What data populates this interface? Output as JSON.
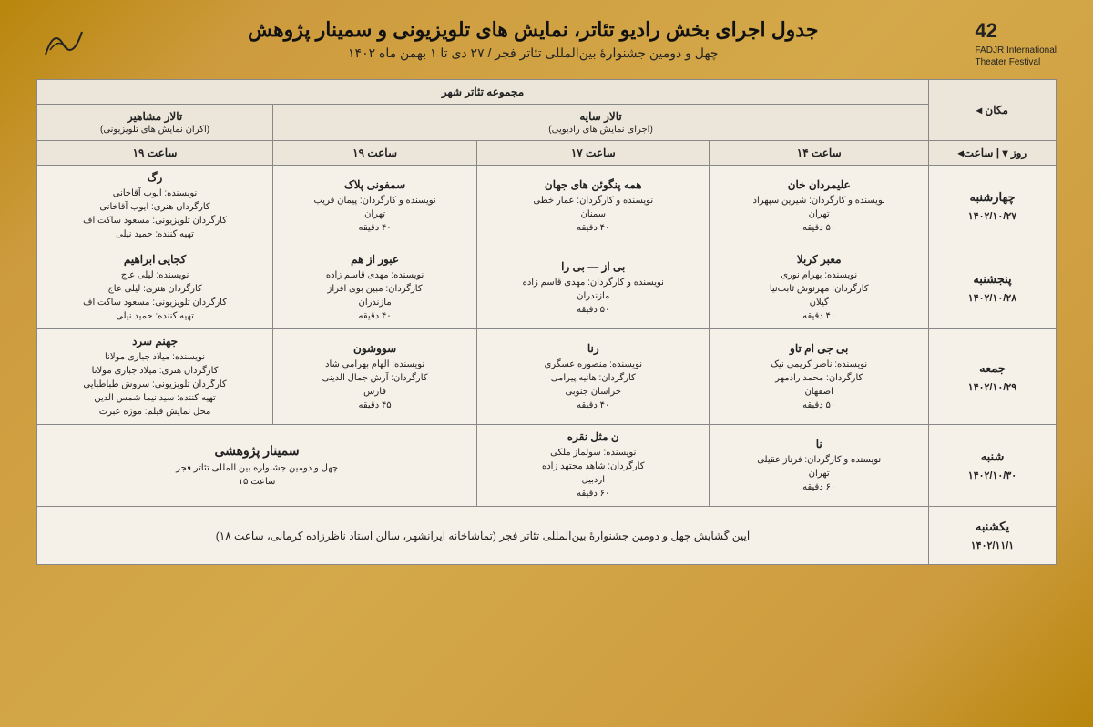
{
  "header": {
    "logo_right_num": "42",
    "logo_right_text1": "FADJR International",
    "logo_right_text2": "Theater Festival",
    "title_main": "جدول اجرای بخش رادیو تئاتر، نمایش های تلویزیونی و سمینار پژوهش",
    "title_sub": "چهل و دومین جشنوارهٔ بین‌المللی تئاتر فجر   /   ۲۷ دی تا ۱ بهمن ماه ۱۴۰۲"
  },
  "columns": {
    "venue_group": "مجموعه تئاتر شهر",
    "place_label": "مکان ◂",
    "day_time_label": "روز  ▾   |   ساعت◂",
    "hall_sayeh": "تالار سایه",
    "hall_sayeh_sub": "(اجرای نمایش های رادیویی)",
    "hall_mashahir": "تالار مشاهیر",
    "hall_mashahir_sub": "(اکران نمایش های تلویزیونی)",
    "time_14": "ساعت ۱۴",
    "time_17": "ساعت ۱۷",
    "time_19a": "ساعت ۱۹",
    "time_19b": "ساعت ۱۹"
  },
  "rows": [
    {
      "day_name": "چهارشنبه",
      "day_date": "۱۴۰۲/۱۰/۲۷",
      "c14": {
        "title": "علیمردان خان",
        "lines": [
          "نویسنده و کارگردان: شیرین سپهراد",
          "تهران",
          "۵۰ دقیقه"
        ]
      },
      "c17": {
        "title": "همه پنگوئن های جهان",
        "lines": [
          "نویسنده و کارگردان: عمار خطی",
          "سمنان",
          "۴۰ دقیقه"
        ]
      },
      "c19a": {
        "title": "سمفونی پلاک",
        "lines": [
          "نویسنده و کارگردان: پیمان قریب",
          "تهران",
          "۴۰ دقیقه"
        ]
      },
      "c19b": {
        "title": "رگ",
        "lines": [
          "نویسنده: ایوب آقاخانی",
          "کارگردان هنری: ایوب آقاخانی",
          "کارگردان تلویزیونی: مسعود ساکت اف",
          "تهیه کننده: حمید نیلی"
        ]
      }
    },
    {
      "day_name": "پنجشنبه",
      "day_date": "۱۴۰۲/۱۰/۲۸",
      "c14": {
        "title": "معبر کربلا",
        "lines": [
          "نویسنده: بهرام نوری",
          "کارگردان: مهرنوش ثابت‌نیا",
          "گیلان",
          "۴۰ دقیقه"
        ]
      },
      "c17": {
        "title": "بی از — بی را",
        "lines": [
          "نویسنده و کارگردان: مهدی قاسم زاده",
          "مازندران",
          "۵۰ دقیقه"
        ]
      },
      "c19a": {
        "title": "عبور از هم",
        "lines": [
          "نویسنده: مهدی قاسم زاده",
          "کارگردان: مبین بوی افراز",
          "مازندران",
          "۴۰ دقیقه"
        ]
      },
      "c19b": {
        "title": "کجایی ابراهیم",
        "lines": [
          "نویسنده: لیلی عاج",
          "کارگردان هنری: لیلی عاج",
          "کارگردان تلویزیونی: مسعود ساکت اف",
          "تهیه کننده: حمید نیلی"
        ]
      }
    },
    {
      "day_name": "جمعه",
      "day_date": "۱۴۰۲/۱۰/۲۹",
      "c14": {
        "title": "بی جی ام تاو",
        "lines": [
          "نویسنده: ناصر کریمی نیک",
          "کارگردان: محمد رادمهر",
          "اصفهان",
          "۵۰ دقیقه"
        ]
      },
      "c17": {
        "title": "رنا",
        "lines": [
          "نویسنده: منصوره عسگری",
          "کارگردان: هانیه پیرامی",
          "خراسان جنوبی",
          "۴۰ دقیقه"
        ]
      },
      "c19a": {
        "title": "سووشون",
        "lines": [
          "نویسنده: الهام بهرامی شاد",
          "کارگردان: آرش جمال الدینی",
          "فارس",
          "۴۵ دقیقه"
        ]
      },
      "c19b": {
        "title": "جهنم سرد",
        "lines": [
          "نویسنده: میلاد جباری مولانا",
          "کارگردان هنری: میلاد جباری مولانا",
          "کارگردان تلویزیونی: سروش طباطبایی",
          "تهیه کننده: سید نیما شمس الدین",
          "محل نمایش فیلم: موزه عبرت"
        ]
      }
    },
    {
      "day_name": "شنبه",
      "day_date": "۱۴۰۲/۱۰/۳۰",
      "c14": {
        "title": "نا",
        "lines": [
          "نویسنده و کارگردان: فرناز عقیلی",
          "تهران",
          "۶۰ دقیقه"
        ]
      },
      "c17": {
        "title": "ن مثل نقره",
        "lines": [
          "نویسنده: سولماز ملکی",
          "کارگردان: شاهد مجتهد زاده",
          "اردبیل",
          "۶۰ دقیقه"
        ]
      },
      "seminar": {
        "title": "سمینار پژوهشی",
        "lines": [
          "چهل و دومین جشنواره بین المللی تئاتر فجر",
          "ساعت ۱۵"
        ]
      }
    }
  ],
  "footer": {
    "day_name": "یکشنبه",
    "day_date": "۱۴۰۲/۱۱/۱",
    "text": "آیین گشایش چهل و دومین جشنوارهٔ بین‌المللی تئاتر فجر (تماشاخانه ایرانشهر، سالن استاد ناظرزاده کرمانی، ساعت ۱۸)"
  },
  "colors": {
    "bg_gold": "#cd9b3d",
    "table_bg": "#f5f0e8",
    "border": "#888888",
    "text": "#222222"
  }
}
